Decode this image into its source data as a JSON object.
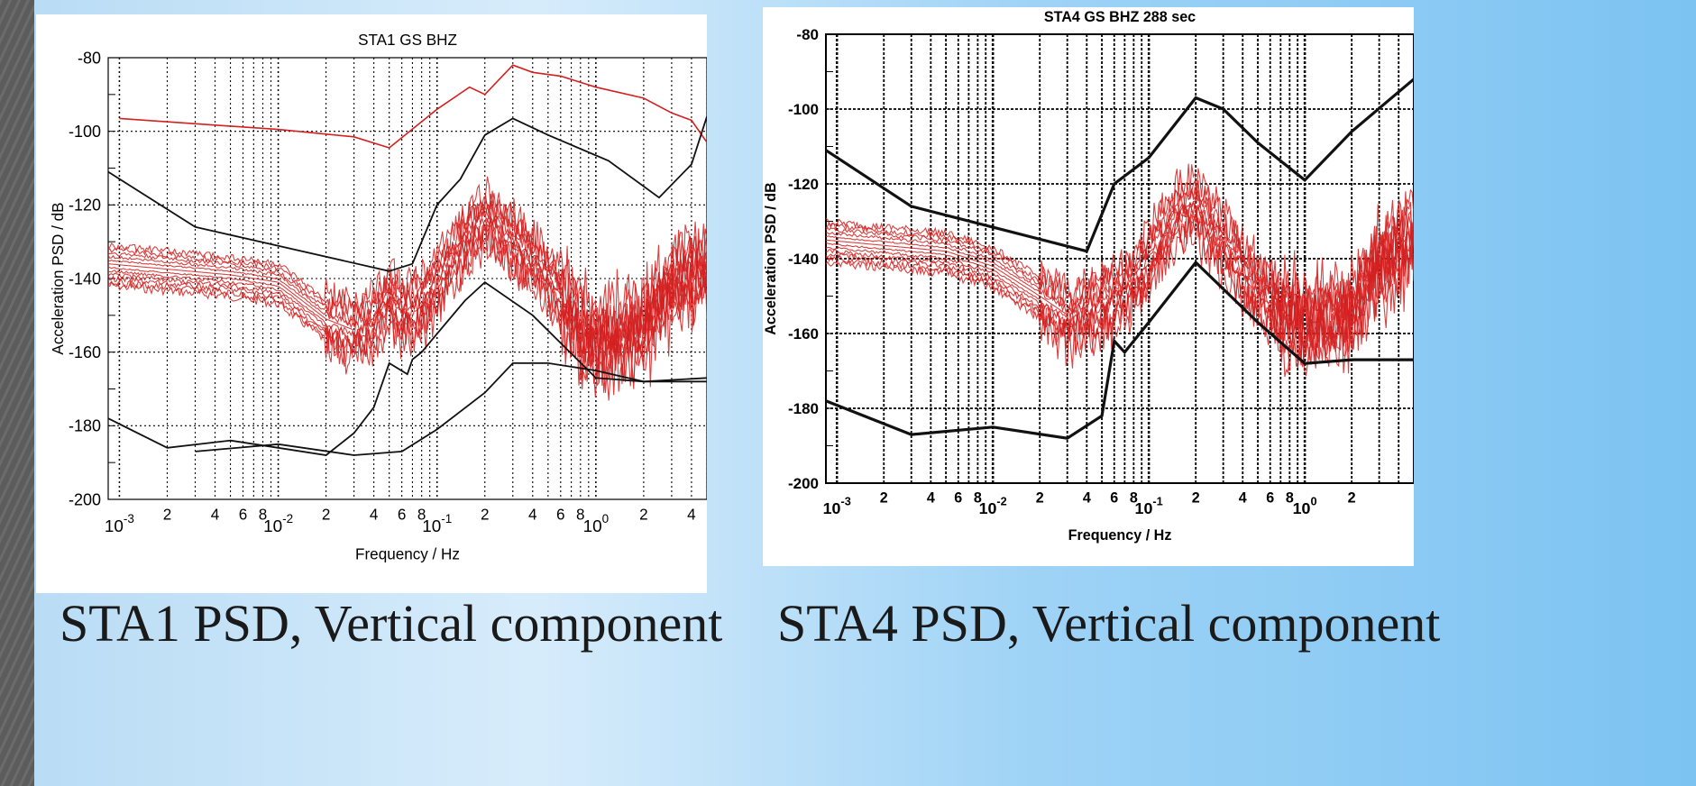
{
  "slide": {
    "caption1": "STA1 PSD, Vertical component",
    "caption2": "STA4 PSD, Vertical component"
  },
  "chart_data": [
    {
      "type": "line",
      "title": "STA1 GS BHZ",
      "xlabel": "Frequency / Hz",
      "ylabel": "Acceleration PSD / dB",
      "xscale": "log",
      "xlim": [
        0.00085,
        5
      ],
      "ylim": [
        -200,
        -80
      ],
      "yticks": [
        -80,
        -100,
        -120,
        -140,
        -160,
        -180,
        -200
      ],
      "xticks_major": [
        "10^-3",
        "10^-2",
        "10^-1",
        "10^0"
      ],
      "xticks_minor_labels": [
        "2",
        "4",
        "6",
        "8",
        "2",
        "4",
        "6",
        "8",
        "2",
        "4",
        "6",
        "8",
        "2",
        "4",
        "6",
        "8",
        "2",
        "4"
      ],
      "grid": true,
      "series": [
        {
          "color": "#d42020",
          "x": [
            0.001,
            0.01,
            0.03,
            0.05,
            0.1,
            0.16,
            0.2,
            0.3,
            0.4,
            0.6,
            1,
            2,
            3,
            4,
            5
          ],
          "y": [
            -96.5,
            -99.5,
            -101.5,
            -104.5,
            -94,
            -88,
            -90,
            -82,
            -84,
            -85,
            -88,
            -91,
            -95,
            -97,
            -103
          ]
        },
        {
          "color": "#111111",
          "x": [
            0.00085,
            0.003,
            0.05,
            0.07,
            0.1,
            0.14,
            0.2,
            0.3,
            0.5,
            1.2,
            2.5,
            4,
            5
          ],
          "y": [
            -111,
            -126,
            -138,
            -136,
            -120,
            -113,
            -101,
            -96.5,
            -101,
            -108,
            -118,
            -109,
            -96
          ]
        },
        {
          "color": "#111111",
          "x": [
            0.00085,
            0.002,
            0.005,
            0.01,
            0.02,
            0.03,
            0.04,
            0.05,
            0.065,
            0.07,
            0.08,
            0.1,
            0.15,
            0.2,
            0.4,
            1,
            2,
            5
          ],
          "y": [
            -178,
            -186,
            -184,
            -186,
            -188,
            -182,
            -175,
            -163,
            -166,
            -162,
            -160,
            -155,
            -146,
            -141,
            -150,
            -167,
            -168,
            -167
          ]
        },
        {
          "color": "#111111",
          "x": [
            0.003,
            0.01,
            0.03,
            0.06,
            0.1,
            0.2,
            0.3,
            0.5,
            1,
            2,
            5
          ],
          "y": [
            -187,
            -185,
            -188,
            -187,
            -181,
            -171,
            -163,
            -163,
            -165,
            -168,
            -168
          ]
        }
      ],
      "red_trace_band": {
        "color": "#d42020",
        "x": [
          0.00085,
          0.005,
          0.01,
          0.02,
          0.03,
          0.04,
          0.05,
          0.06,
          0.08,
          0.1,
          0.15,
          0.2,
          0.3,
          0.5,
          0.8,
          1,
          2,
          3,
          5
        ],
        "y": [
          -136,
          -139,
          -141,
          -151,
          -154,
          -151,
          -144,
          -149,
          -147,
          -140,
          -129,
          -123,
          -129,
          -139,
          -153,
          -157,
          -152,
          -141,
          -137
        ],
        "count": 12
      }
    },
    {
      "type": "line",
      "title": "STA4 GS BHZ 288 sec",
      "xlabel": "Frequency / Hz",
      "ylabel": "Acceleration PSD / dB",
      "xscale": "log",
      "xlim": [
        0.00085,
        5
      ],
      "ylim": [
        -200,
        -80
      ],
      "yticks": [
        -80,
        -100,
        -120,
        -140,
        -160,
        -180,
        -200
      ],
      "xticks_major": [
        "10^-3",
        "10^-2",
        "10^-1",
        "10^0"
      ],
      "xticks_minor_labels": [
        "2",
        "4",
        "6",
        "8",
        "2",
        "4",
        "6",
        "8",
        "2",
        "4",
        "6",
        "8",
        "2"
      ],
      "grid": true,
      "series": [
        {
          "color": "#111111",
          "x": [
            0.00085,
            0.003,
            0.04,
            0.06,
            0.1,
            0.2,
            0.3,
            0.5,
            1,
            2,
            5
          ],
          "y": [
            -111,
            -126,
            -138,
            -120,
            -113,
            -97,
            -100,
            -109,
            -119,
            -106,
            -92
          ]
        },
        {
          "color": "#111111",
          "x": [
            0.00085,
            0.003,
            0.01,
            0.03,
            0.05,
            0.06,
            0.07,
            0.1,
            0.2,
            0.5,
            1,
            2,
            5
          ],
          "y": [
            -178,
            -187,
            -185,
            -188,
            -182,
            -162,
            -165,
            -157,
            -141,
            -157,
            -168,
            -167,
            -167
          ]
        }
      ],
      "red_trace_band": {
        "color": "#d42020",
        "x": [
          0.00085,
          0.005,
          0.01,
          0.02,
          0.03,
          0.05,
          0.08,
          0.1,
          0.15,
          0.2,
          0.3,
          0.5,
          1,
          2,
          3,
          5
        ],
        "y": [
          -135,
          -138,
          -142,
          -150,
          -155,
          -152,
          -146,
          -140,
          -128,
          -125,
          -135,
          -148,
          -157,
          -154,
          -140,
          -134
        ],
        "count": 12
      }
    }
  ]
}
